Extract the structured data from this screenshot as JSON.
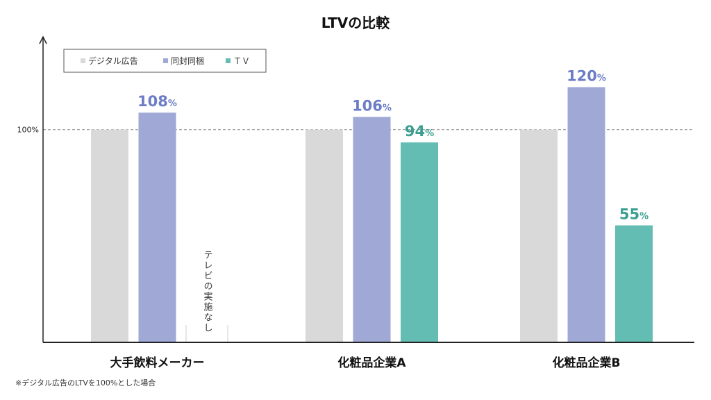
{
  "chart_data": {
    "type": "bar",
    "title": "LTVの比較",
    "categories": [
      "大手飲料メーカー",
      "化粧品企業A",
      "化粧品企業B"
    ],
    "series": [
      {
        "name": "デジタル広告",
        "color": "#d9d9d9",
        "label_color": "#888888",
        "values": [
          100,
          100,
          100
        ]
      },
      {
        "name": "同封同梱",
        "color": "#a0a8d6",
        "label_color": "#6d7cc6",
        "values": [
          108,
          106,
          120
        ]
      },
      {
        "name": "ＴＶ",
        "color": "#63bdb2",
        "label_color": "#3a9f90",
        "values": [
          null,
          94,
          55
        ]
      }
    ],
    "data_labels_shown": {
      "デジタル広告": false,
      "同封同梱": true,
      "ＴＶ": true
    },
    "unit": "%",
    "reference_line": {
      "value": 100,
      "label": "100%",
      "style": "dashed"
    },
    "ylim": [
      0,
      143
    ],
    "legend": "top-left",
    "grid": false,
    "annotations": {
      "no_tv": "テレビの実施なし"
    },
    "footnote": "※デジタル広告のLTVを100%とした場合"
  }
}
